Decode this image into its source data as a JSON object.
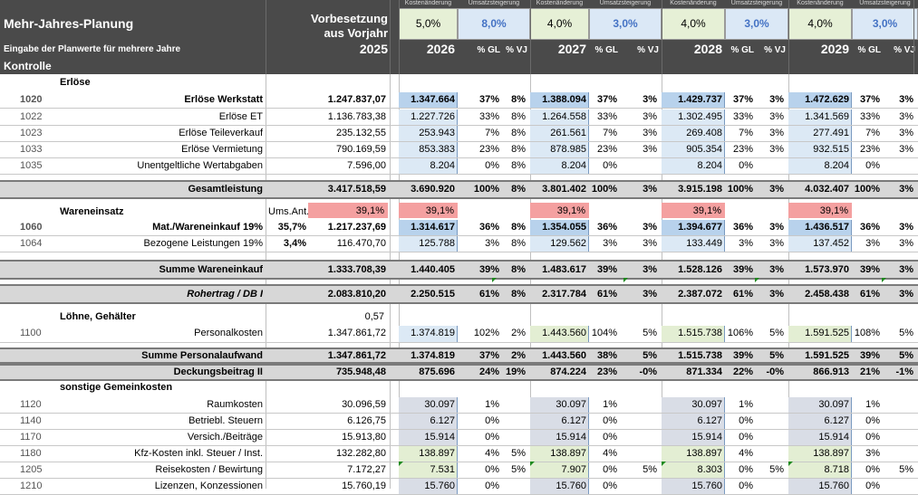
{
  "header": {
    "title": "Mehr-Jahres-Planung",
    "subtitle": "Eingabe der Planwerte für mehrere Jahre",
    "vorbesetzung": "Vorbesetzung",
    "aus_vorjahr": "aus Vorjahr",
    "base_year": "2025",
    "kontrolle": "Kontrolle",
    "kosten_label": "Kostenänderung",
    "umsatz_label": "Umsatzsteigerung",
    "col_gl": "% GL",
    "col_vj": "% VJ",
    "years": [
      {
        "year": "2026",
        "kosten": "5,0%",
        "umsatz": "8,0%"
      },
      {
        "year": "2027",
        "kosten": "4,0%",
        "umsatz": "3,0%"
      },
      {
        "year": "2028",
        "kosten": "4,0%",
        "umsatz": "3,0%"
      },
      {
        "year": "2029",
        "kosten": "4,0%",
        "umsatz": "3,0%"
      }
    ]
  },
  "sections": {
    "erloese": "Erlöse",
    "wareneinsatz": "Wareneinsatz",
    "loehne": "Löhne, Gehälter",
    "loehne_value": "0,57",
    "sonstige": "sonstige Gemeinkosten",
    "ums_ant_label": "Ums.Ant.",
    "ums_ant_values": [
      "39,1%",
      "39,1%",
      "39,1%",
      "39,1%",
      "39,1%"
    ]
  },
  "rows": [
    {
      "id": "r1020",
      "code": "1020",
      "label": "Erlöse Werkstatt",
      "base": "1.247.837,07",
      "bold": true,
      "y": [
        [
          "1.347.664",
          "37%",
          "8%"
        ],
        [
          "1.388.094",
          "37%",
          "3%"
        ],
        [
          "1.429.737",
          "37%",
          "3%"
        ],
        [
          "1.472.629",
          "37%",
          "3%"
        ]
      ]
    },
    {
      "id": "r1022",
      "code": "1022",
      "label": "Erlöse ET",
      "base": "1.136.783,38",
      "y": [
        [
          "1.227.726",
          "33%",
          "8%"
        ],
        [
          "1.264.558",
          "33%",
          "3%"
        ],
        [
          "1.302.495",
          "33%",
          "3%"
        ],
        [
          "1.341.569",
          "33%",
          "3%"
        ]
      ]
    },
    {
      "id": "r1023",
      "code": "1023",
      "label": "Erlöse Teileverkauf",
      "base": "235.132,55",
      "y": [
        [
          "253.943",
          "7%",
          "8%"
        ],
        [
          "261.561",
          "7%",
          "3%"
        ],
        [
          "269.408",
          "7%",
          "3%"
        ],
        [
          "277.491",
          "7%",
          "3%"
        ]
      ]
    },
    {
      "id": "r1033",
      "code": "1033",
      "label": "Erlöse Vermietung",
      "base": "790.169,59",
      "y": [
        [
          "853.383",
          "23%",
          "8%"
        ],
        [
          "878.985",
          "23%",
          "3%"
        ],
        [
          "905.354",
          "23%",
          "3%"
        ],
        [
          "932.515",
          "23%",
          "3%"
        ]
      ]
    },
    {
      "id": "r1035",
      "code": "1035",
      "label": "Unentgeltliche Wertabgaben",
      "base": "7.596,00",
      "y": [
        [
          "8.204",
          "0%",
          "8%"
        ],
        [
          "8.204",
          "0%",
          ""
        ],
        [
          "8.204",
          "0%",
          ""
        ],
        [
          "8.204",
          "0%",
          ""
        ]
      ]
    },
    {
      "id": "gesamt",
      "label": "Gesamtleistung",
      "base": "3.417.518,59",
      "bold": true,
      "y": [
        [
          "3.690.920",
          "100%",
          "8%"
        ],
        [
          "3.801.402",
          "100%",
          "3%"
        ],
        [
          "3.915.198",
          "100%",
          "3%"
        ],
        [
          "4.032.407",
          "100%",
          "3%"
        ]
      ]
    },
    {
      "id": "r1060",
      "code": "1060",
      "label": "Mat./Wareneinkauf 19%",
      "pct": "35,7%",
      "base": "1.217.237,69",
      "bold": true,
      "y": [
        [
          "1.314.617",
          "36%",
          "8%"
        ],
        [
          "1.354.055",
          "36%",
          "3%"
        ],
        [
          "1.394.677",
          "36%",
          "3%"
        ],
        [
          "1.436.517",
          "36%",
          "3%"
        ]
      ]
    },
    {
      "id": "r1064",
      "code": "1064",
      "label": "Bezogene Leistungen 19%",
      "pct": "3,4%",
      "base": "116.470,70",
      "y": [
        [
          "125.788",
          "3%",
          "8%"
        ],
        [
          "129.562",
          "3%",
          "3%"
        ],
        [
          "133.449",
          "3%",
          "3%"
        ],
        [
          "137.452",
          "3%",
          "3%"
        ]
      ]
    },
    {
      "id": "sumware",
      "label": "Summe Wareneinkauf",
      "base": "1.333.708,39",
      "bold": true,
      "y": [
        [
          "1.440.405",
          "39%",
          "8%"
        ],
        [
          "1.483.617",
          "39%",
          "3%"
        ],
        [
          "1.528.126",
          "39%",
          "3%"
        ],
        [
          "1.573.970",
          "39%",
          "3%"
        ]
      ]
    },
    {
      "id": "rohertrag",
      "label": "Rohertrag / DB I",
      "base": "2.083.810,20",
      "bold": true,
      "italic": true,
      "y": [
        [
          "2.250.515",
          "61%",
          "8%"
        ],
        [
          "2.317.784",
          "61%",
          "3%"
        ],
        [
          "2.387.072",
          "61%",
          "3%"
        ],
        [
          "2.458.438",
          "61%",
          "3%"
        ]
      ]
    },
    {
      "id": "r1100",
      "code": "1100",
      "label": "Personalkosten",
      "base": "1.347.861,72",
      "y": [
        [
          "1.374.819",
          "102%",
          "2%"
        ],
        [
          "1.443.560",
          "104%",
          "5%"
        ],
        [
          "1.515.738",
          "106%",
          "5%"
        ],
        [
          "1.591.525",
          "108%",
          "5%"
        ]
      ]
    },
    {
      "id": "sumpers",
      "label": "Summe Personalaufwand",
      "base": "1.347.861,72",
      "bold": true,
      "y": [
        [
          "1.374.819",
          "37%",
          "2%"
        ],
        [
          "1.443.560",
          "38%",
          "5%"
        ],
        [
          "1.515.738",
          "39%",
          "5%"
        ],
        [
          "1.591.525",
          "39%",
          "5%"
        ]
      ]
    },
    {
      "id": "db2",
      "label": "Deckungsbeitrag II",
      "base": "735.948,48",
      "bold": true,
      "y": [
        [
          "875.696",
          "24%",
          "19%"
        ],
        [
          "874.224",
          "23%",
          "-0%"
        ],
        [
          "871.334",
          "22%",
          "-0%"
        ],
        [
          "866.913",
          "21%",
          "-1%"
        ]
      ]
    },
    {
      "id": "r1120",
      "code": "1120",
      "label": "Raumkosten",
      "base": "30.096,59",
      "y": [
        [
          "30.097",
          "1%",
          ""
        ],
        [
          "30.097",
          "1%",
          ""
        ],
        [
          "30.097",
          "1%",
          ""
        ],
        [
          "30.097",
          "1%",
          ""
        ]
      ]
    },
    {
      "id": "r1140",
      "code": "1140",
      "label": "Betriebl. Steuern",
      "base": "6.126,75",
      "y": [
        [
          "6.127",
          "0%",
          ""
        ],
        [
          "6.127",
          "0%",
          ""
        ],
        [
          "6.127",
          "0%",
          ""
        ],
        [
          "6.127",
          "0%",
          ""
        ]
      ]
    },
    {
      "id": "r1170",
      "code": "1170",
      "label": "Versich./Beiträge",
      "base": "15.913,80",
      "y": [
        [
          "15.914",
          "0%",
          ""
        ],
        [
          "15.914",
          "0%",
          ""
        ],
        [
          "15.914",
          "0%",
          ""
        ],
        [
          "15.914",
          "0%",
          ""
        ]
      ]
    },
    {
      "id": "r1180",
      "code": "1180",
      "label": "Kfz-Kosten inkl. Steuer / Inst.",
      "base": "132.282,80",
      "y": [
        [
          "138.897",
          "4%",
          "5%"
        ],
        [
          "138.897",
          "4%",
          ""
        ],
        [
          "138.897",
          "4%",
          ""
        ],
        [
          "138.897",
          "3%",
          ""
        ]
      ]
    },
    {
      "id": "r1205",
      "code": "1205",
      "label": "Reisekosten / Bewirtung",
      "base": "7.172,27",
      "y": [
        [
          "7.531",
          "0%",
          "5%"
        ],
        [
          "7.907",
          "0%",
          "5%"
        ],
        [
          "8.303",
          "0%",
          "5%"
        ],
        [
          "8.718",
          "0%",
          "5%"
        ]
      ]
    },
    {
      "id": "r1210",
      "code": "1210",
      "label": "Lizenzen, Konzessionen",
      "base": "15.760,19",
      "y": [
        [
          "15.760",
          "0%",
          ""
        ],
        [
          "15.760",
          "0%",
          ""
        ],
        [
          "15.760",
          "0%",
          ""
        ],
        [
          "15.760",
          "0%",
          ""
        ]
      ]
    }
  ],
  "colors": {
    "header_bg": "#4a4a4a",
    "kosten_box": "#e6f0d6",
    "umsatz_box": "#dbe8f6",
    "blue_cell": "#b8d2ec",
    "light_blue_cell": "#dce9f5",
    "green_cell": "#e3eed3",
    "grey_cell": "#d9dde6",
    "pink_cell": "#f4a0a0",
    "umsatz_text": "#4472c4"
  }
}
